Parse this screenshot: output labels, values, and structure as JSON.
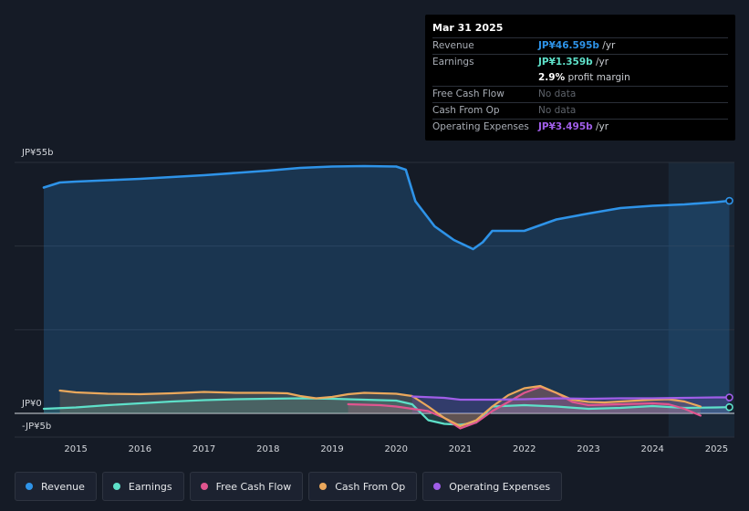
{
  "chart_data": {
    "type": "line",
    "title": "",
    "xlabel": "",
    "ylabel": "",
    "unit": "JP¥ billions",
    "ylim": [
      -5,
      55
    ],
    "xlim": [
      2014.5,
      2025.25
    ],
    "y_tick_labels": [
      {
        "value": 55,
        "label": "JP¥55b"
      },
      {
        "value": 0,
        "label": "JP¥0"
      },
      {
        "value": -5,
        "label": "-JP¥5b"
      }
    ],
    "x_ticks": [
      2015,
      2016,
      2017,
      2018,
      2019,
      2020,
      2021,
      2022,
      2023,
      2024,
      2025
    ],
    "x_tick_labels": [
      "2015",
      "2016",
      "2017",
      "2018",
      "2019",
      "2020",
      "2021",
      "2022",
      "2023",
      "2024",
      "2025"
    ],
    "series": [
      {
        "name": "Revenue",
        "color": "#2e93e8",
        "fill": true,
        "points": [
          [
            2014.5,
            49.5
          ],
          [
            2014.75,
            50.6
          ],
          [
            2015.0,
            50.8
          ],
          [
            2015.5,
            51.1
          ],
          [
            2016.0,
            51.4
          ],
          [
            2016.5,
            51.8
          ],
          [
            2017.0,
            52.2
          ],
          [
            2017.5,
            52.7
          ],
          [
            2018.0,
            53.2
          ],
          [
            2018.5,
            53.8
          ],
          [
            2019.0,
            54.1
          ],
          [
            2019.5,
            54.2
          ],
          [
            2020.0,
            54.1
          ],
          [
            2020.15,
            53.4
          ],
          [
            2020.3,
            46.5
          ],
          [
            2020.6,
            41.0
          ],
          [
            2020.9,
            38.0
          ],
          [
            2021.2,
            36.0
          ],
          [
            2021.35,
            37.5
          ],
          [
            2021.5,
            40.0
          ],
          [
            2022.0,
            40.0
          ],
          [
            2022.5,
            42.5
          ],
          [
            2023.0,
            43.8
          ],
          [
            2023.5,
            45.0
          ],
          [
            2024.0,
            45.5
          ],
          [
            2024.5,
            45.8
          ],
          [
            2025.0,
            46.3
          ],
          [
            2025.2,
            46.595
          ]
        ]
      },
      {
        "name": "Earnings",
        "color": "#5ee0c9",
        "fill": true,
        "points": [
          [
            2014.5,
            1.0
          ],
          [
            2015.0,
            1.3
          ],
          [
            2015.5,
            1.8
          ],
          [
            2016.0,
            2.2
          ],
          [
            2016.5,
            2.6
          ],
          [
            2017.0,
            2.9
          ],
          [
            2017.5,
            3.1
          ],
          [
            2018.0,
            3.2
          ],
          [
            2018.5,
            3.3
          ],
          [
            2019.0,
            3.2
          ],
          [
            2019.5,
            3.0
          ],
          [
            2020.0,
            2.8
          ],
          [
            2020.25,
            2.0
          ],
          [
            2020.5,
            -1.5
          ],
          [
            2020.75,
            -2.3
          ],
          [
            2021.0,
            -2.5
          ],
          [
            2021.25,
            -2.0
          ],
          [
            2021.5,
            1.5
          ],
          [
            2022.0,
            1.8
          ],
          [
            2022.5,
            1.5
          ],
          [
            2023.0,
            1.0
          ],
          [
            2023.5,
            1.2
          ],
          [
            2024.0,
            1.6
          ],
          [
            2024.5,
            1.2
          ],
          [
            2025.0,
            1.3
          ],
          [
            2025.2,
            1.359
          ]
        ]
      },
      {
        "name": "Free Cash Flow",
        "color": "#e0558f",
        "fill": true,
        "points": [
          [
            2019.25,
            2.0
          ],
          [
            2019.75,
            1.8
          ],
          [
            2020.0,
            1.5
          ],
          [
            2020.5,
            0.5
          ],
          [
            2020.75,
            -1.0
          ],
          [
            2021.0,
            -3.3
          ],
          [
            2021.25,
            -2.0
          ],
          [
            2021.5,
            0.5
          ],
          [
            2021.75,
            2.5
          ],
          [
            2022.0,
            4.5
          ],
          [
            2022.25,
            5.8
          ],
          [
            2022.5,
            4.5
          ],
          [
            2022.75,
            2.5
          ],
          [
            2023.0,
            1.8
          ],
          [
            2023.5,
            2.0
          ],
          [
            2024.0,
            2.2
          ],
          [
            2024.25,
            2.0
          ],
          [
            2024.5,
            1.0
          ],
          [
            2024.75,
            -0.5
          ]
        ]
      },
      {
        "name": "Cash From Op",
        "color": "#eba85c",
        "fill": true,
        "points": [
          [
            2014.75,
            5.0
          ],
          [
            2015.0,
            4.6
          ],
          [
            2015.5,
            4.3
          ],
          [
            2016.0,
            4.2
          ],
          [
            2016.5,
            4.4
          ],
          [
            2017.0,
            4.7
          ],
          [
            2017.5,
            4.5
          ],
          [
            2018.0,
            4.5
          ],
          [
            2018.3,
            4.4
          ],
          [
            2018.5,
            3.8
          ],
          [
            2018.75,
            3.3
          ],
          [
            2019.0,
            3.6
          ],
          [
            2019.25,
            4.2
          ],
          [
            2019.5,
            4.5
          ],
          [
            2020.0,
            4.3
          ],
          [
            2020.25,
            3.8
          ],
          [
            2020.5,
            1.5
          ],
          [
            2020.75,
            -1.0
          ],
          [
            2021.0,
            -2.8
          ],
          [
            2021.25,
            -1.5
          ],
          [
            2021.5,
            1.5
          ],
          [
            2021.75,
            4.0
          ],
          [
            2022.0,
            5.5
          ],
          [
            2022.25,
            6.0
          ],
          [
            2022.5,
            4.5
          ],
          [
            2022.75,
            3.0
          ],
          [
            2023.0,
            2.5
          ],
          [
            2023.25,
            2.4
          ],
          [
            2023.5,
            2.6
          ],
          [
            2024.0,
            3.0
          ],
          [
            2024.25,
            3.1
          ],
          [
            2024.5,
            2.6
          ],
          [
            2024.75,
            1.5
          ]
        ]
      },
      {
        "name": "Operating Expenses",
        "color": "#a05ee8",
        "fill": true,
        "points": [
          [
            2020.25,
            3.7
          ],
          [
            2020.75,
            3.4
          ],
          [
            2021.0,
            3.0
          ],
          [
            2021.5,
            3.0
          ],
          [
            2022.0,
            3.1
          ],
          [
            2022.5,
            3.3
          ],
          [
            2023.0,
            3.2
          ],
          [
            2023.5,
            3.3
          ],
          [
            2024.0,
            3.3
          ],
          [
            2024.5,
            3.4
          ],
          [
            2025.0,
            3.5
          ],
          [
            2025.2,
            3.495
          ]
        ]
      }
    ],
    "highlight_from": 2024.25
  },
  "tooltip": {
    "date": "Mar 31 2025",
    "rows": [
      {
        "label": "Revenue",
        "value": "JP¥46.595b",
        "unit": " /yr",
        "color": "#2e93e8"
      },
      {
        "label": "Earnings",
        "value": "JP¥1.359b",
        "unit": " /yr",
        "color": "#5ee0c9"
      },
      {
        "label": "",
        "value": "2.9%",
        "unit": " profit margin",
        "color": "#ffffff"
      },
      {
        "label": "Free Cash Flow",
        "value": "No data",
        "unit": "",
        "color": "#5e636b"
      },
      {
        "label": "Cash From Op",
        "value": "No data",
        "unit": "",
        "color": "#5e636b"
      },
      {
        "label": "Operating Expenses",
        "value": "JP¥3.495b",
        "unit": " /yr",
        "color": "#a05ee8"
      }
    ]
  },
  "legend": [
    {
      "label": "Revenue",
      "color": "#2e93e8"
    },
    {
      "label": "Earnings",
      "color": "#5ee0c9"
    },
    {
      "label": "Free Cash Flow",
      "color": "#e0558f"
    },
    {
      "label": "Cash From Op",
      "color": "#eba85c"
    },
    {
      "label": "Operating Expenses",
      "color": "#a05ee8"
    }
  ]
}
